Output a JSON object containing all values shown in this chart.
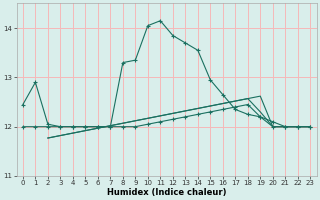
{
  "xlabel": "Humidex (Indice chaleur)",
  "xlim": [
    -0.5,
    23.5
  ],
  "ylim": [
    11,
    14.5
  ],
  "yticks": [
    11,
    12,
    13,
    14
  ],
  "xticks": [
    0,
    1,
    2,
    3,
    4,
    5,
    6,
    7,
    8,
    9,
    10,
    11,
    12,
    13,
    14,
    15,
    16,
    17,
    18,
    19,
    20,
    21,
    22,
    23
  ],
  "bg_color": "#d9eeeb",
  "grid_color": "#f5b8b8",
  "line_color": "#1a7060",
  "lines": [
    {
      "x": [
        0,
        1,
        2,
        3,
        4,
        5,
        6,
        7,
        8,
        9,
        10,
        11,
        12,
        13,
        14,
        15,
        16,
        17,
        18,
        19,
        20,
        21,
        22,
        23
      ],
      "y": [
        12.45,
        12.9,
        12.05,
        12.0,
        12.0,
        12.0,
        12.0,
        12.0,
        13.3,
        13.35,
        14.05,
        14.15,
        13.85,
        13.7,
        13.55,
        12.95,
        12.65,
        12.35,
        12.25,
        12.2,
        12.1,
        12.0,
        12.0,
        12.0
      ],
      "marker": true
    },
    {
      "x": [
        0,
        1,
        2,
        3,
        4,
        5,
        6,
        7,
        8,
        9,
        10,
        11,
        12,
        13,
        14,
        15,
        16,
        17,
        18,
        19,
        20,
        21,
        22,
        23
      ],
      "y": [
        12.0,
        12.0,
        12.0,
        12.0,
        12.0,
        12.0,
        12.0,
        12.0,
        12.0,
        12.0,
        12.05,
        12.1,
        12.15,
        12.2,
        12.25,
        12.3,
        12.35,
        12.4,
        12.45,
        12.2,
        12.0,
        12.0,
        12.0,
        12.0
      ],
      "marker": true
    },
    {
      "x": [
        2,
        3,
        4,
        5,
        6,
        7,
        8,
        9,
        10,
        11,
        12,
        13,
        14,
        15,
        16,
        17,
        18,
        19,
        20,
        21,
        22,
        23
      ],
      "y": [
        11.77,
        11.82,
        11.87,
        11.92,
        11.97,
        12.02,
        12.07,
        12.12,
        12.17,
        12.22,
        12.27,
        12.32,
        12.37,
        12.42,
        12.47,
        12.52,
        12.57,
        12.62,
        12.0,
        12.0,
        12.0,
        12.0
      ],
      "marker": false
    },
    {
      "x": [
        2,
        3,
        4,
        5,
        6,
        7,
        8,
        9,
        10,
        11,
        12,
        13,
        14,
        15,
        16,
        17,
        18,
        19,
        20,
        21,
        22,
        23
      ],
      "y": [
        11.77,
        11.82,
        11.87,
        11.92,
        11.97,
        12.02,
        12.07,
        12.12,
        12.17,
        12.22,
        12.27,
        12.32,
        12.37,
        12.42,
        12.47,
        12.52,
        12.57,
        12.3,
        12.0,
        12.0,
        12.0,
        12.0
      ],
      "marker": false
    }
  ]
}
